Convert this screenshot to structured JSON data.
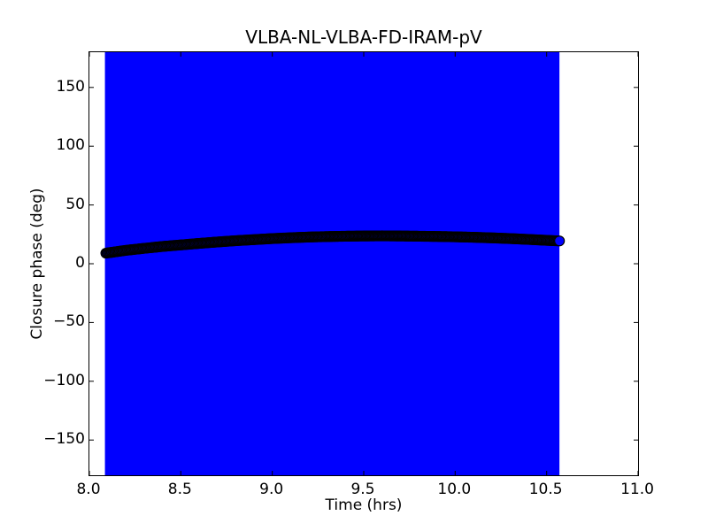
{
  "figure": {
    "background_color": "#ffffff",
    "axes_edge_color": "#000000"
  },
  "chart_data": {
    "type": "scatter",
    "title": "VLBA-NL-VLBA-FD-IRAM-pV",
    "xlabel": "Time (hrs)",
    "ylabel": "Closure phase (deg)",
    "xlim": [
      8.0,
      11.0
    ],
    "ylim": [
      -180,
      180
    ],
    "xticks": [
      8.0,
      8.5,
      9.0,
      9.5,
      10.0,
      10.5,
      11.0
    ],
    "xtick_labels": [
      "8.0",
      "8.5",
      "9.0",
      "9.5",
      "10.0",
      "10.5",
      "11.0"
    ],
    "yticks": [
      150,
      100,
      50,
      0,
      -50,
      -100,
      -150
    ],
    "ytick_labels": [
      "150",
      "100",
      "50",
      "0",
      "−50",
      "−100",
      "−150"
    ],
    "grid": false,
    "legend": null,
    "error_region": {
      "description": "error bars of every point span beyond the full y-axis range, forming a solid filled band",
      "color": "#0000ff",
      "t_start": 8.085,
      "t_end": 10.57,
      "y_extent": "full axis height"
    },
    "series": [
      {
        "name": "closure phase vs time",
        "marker": "circle",
        "marker_diameter_px": 11,
        "marker_face_color": "#0000ff",
        "marker_edge_color": "#000000",
        "sample_count": 400,
        "points": [
          [
            8.09,
            9.0
          ],
          [
            8.2,
            11.4
          ],
          [
            8.3,
            13.1
          ],
          [
            8.4,
            14.7
          ],
          [
            8.5,
            16.0
          ],
          [
            8.6,
            17.3
          ],
          [
            8.7,
            18.5
          ],
          [
            8.8,
            19.6
          ],
          [
            8.9,
            20.5
          ],
          [
            9.0,
            21.4
          ],
          [
            9.1,
            22.1
          ],
          [
            9.2,
            22.7
          ],
          [
            9.3,
            23.1
          ],
          [
            9.4,
            23.4
          ],
          [
            9.5,
            23.6
          ],
          [
            9.6,
            23.7
          ],
          [
            9.7,
            23.6
          ],
          [
            9.8,
            23.4
          ],
          [
            9.9,
            23.2
          ],
          [
            10.0,
            22.9
          ],
          [
            10.1,
            22.5
          ],
          [
            10.2,
            22.0
          ],
          [
            10.3,
            21.4
          ],
          [
            10.4,
            20.7
          ],
          [
            10.5,
            19.9
          ],
          [
            10.57,
            19.4
          ]
        ]
      }
    ]
  }
}
